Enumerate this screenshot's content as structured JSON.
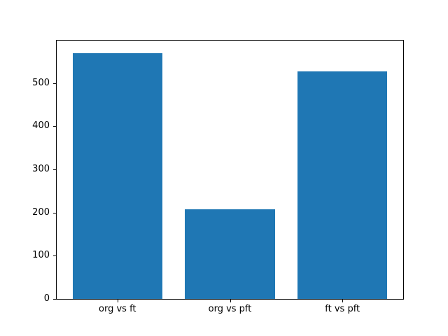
{
  "chart_data": {
    "type": "bar",
    "categories": [
      "org vs ft",
      "org vs pft",
      "ft vs pft"
    ],
    "values": [
      570,
      207,
      527
    ],
    "yticks": [
      0,
      100,
      200,
      300,
      400,
      500
    ],
    "ylim": [
      0,
      598.5
    ],
    "xlim": [
      -0.54,
      2.54
    ],
    "bar_width": 0.8,
    "bar_color": "#1f77b4",
    "axis_color": "#000000",
    "background_color": "#ffffff",
    "grid": false,
    "legend_position": "none"
  }
}
